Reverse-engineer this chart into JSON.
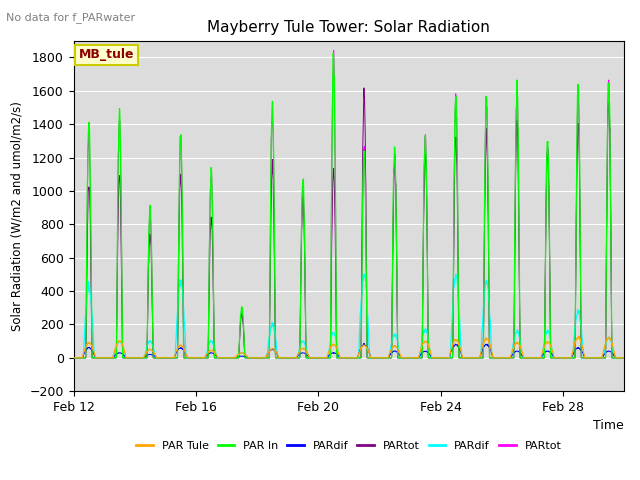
{
  "title": "Mayberry Tule Tower: Solar Radiation",
  "top_left_note": "No data for f_PARwater",
  "ylabel": "Solar Radiation (W/m2 and umol/m2/s)",
  "xlabel": "Time",
  "ylim": [
    -200,
    1900
  ],
  "yticks": [
    -200,
    0,
    200,
    400,
    600,
    800,
    1000,
    1200,
    1400,
    1600,
    1800
  ],
  "bg_color": "#dcdcdc",
  "legend_label": "MB_tule",
  "legend_entries": [
    "PAR Tule",
    "PAR In",
    "PARdif",
    "PARtot",
    "PARdif",
    "PARtot"
  ],
  "legend_colors": [
    "#ffa500",
    "#00ff00",
    "#0000ff",
    "#800080",
    "#00ffff",
    "#ff00ff"
  ],
  "xtick_labels": [
    "Feb 12",
    "Feb 16",
    "Feb 20",
    "Feb 24",
    "Feb 28"
  ],
  "xtick_positions": [
    0,
    4,
    8,
    12,
    16
  ],
  "n_days": 18,
  "par_in_peaks": [
    1400,
    1450,
    900,
    1350,
    1100,
    300,
    1500,
    1050,
    1800,
    1260,
    1240,
    1330,
    1580,
    1580,
    1600,
    1300,
    1650,
    1650
  ],
  "par_mag_peaks": [
    1350,
    1430,
    870,
    1320,
    1100,
    280,
    1500,
    1020,
    1800,
    1250,
    1200,
    1330,
    1570,
    1560,
    1590,
    1280,
    1600,
    1640
  ],
  "par_tule_peaks": [
    90,
    100,
    50,
    75,
    45,
    30,
    55,
    55,
    80,
    75,
    70,
    100,
    110,
    115,
    90,
    95,
    120,
    120
  ],
  "par_cyan_peaks": [
    420,
    100,
    100,
    450,
    100,
    30,
    200,
    100,
    150,
    500,
    140,
    170,
    490,
    460,
    160,
    160,
    280,
    120
  ],
  "par_blue_peaks": [
    60,
    30,
    20,
    60,
    30,
    10,
    50,
    30,
    30,
    80,
    40,
    40,
    80,
    80,
    40,
    40,
    60,
    40
  ],
  "par_purple_peaks": [
    1050,
    1100,
    750,
    1100,
    850,
    260,
    1150,
    950,
    1150,
    1600,
    1180,
    1250,
    1340,
    1340,
    1400,
    1250,
    1400,
    1600
  ]
}
